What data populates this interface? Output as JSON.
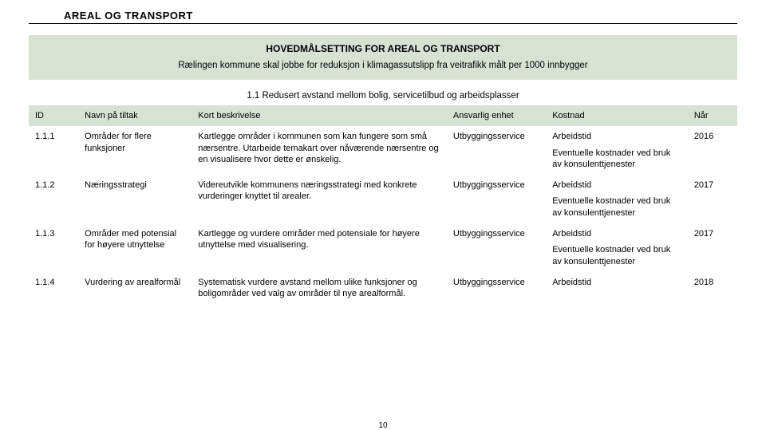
{
  "style": {
    "banner_bg": "#d6e3d3",
    "th_bg": "#d6e3d3"
  },
  "heading": "AREAL OG TRANSPORT",
  "banner": {
    "title": "HOVEDMÅLSETTING FOR AREAL OG TRANSPORT",
    "sub": "Rælingen kommune skal jobbe for reduksjon i klimagassutslipp fra veitrafikk målt per 1000 innbygger"
  },
  "section_title": "1.1 Redusert avstand mellom bolig, servicetilbud og arbeidsplasser",
  "columns": {
    "id": "ID",
    "name": "Navn på tiltak",
    "desc": "Kort beskrivelse",
    "resp": "Ansvarlig enhet",
    "cost": "Kostnad",
    "when": "Når"
  },
  "rows": [
    {
      "id": "1.1.1",
      "name": "Områder for flere funksjoner",
      "desc": "Kartlegge områder i kommunen som kan fungere som små nærsentre. Utarbeide temakart over nåværende nærsentre og en visualisere hvor dette er ønskelig.",
      "resp": "Utbyggingsservice",
      "cost": "Arbeidstid",
      "cost_extra": "Eventuelle kostnader ved bruk av konsulenttjenester",
      "when": "2016"
    },
    {
      "id": "1.1.2",
      "name": "Næringsstrategi",
      "desc": "Videreutvikle kommunens næringsstrategi med konkrete vurderinger knyttet til arealer.",
      "resp": "Utbyggingsservice",
      "cost": "Arbeidstid",
      "cost_extra": "Eventuelle kostnader ved bruk av konsulenttjenester",
      "when": "2017"
    },
    {
      "id": "1.1.3",
      "name": "Områder med potensial for høyere utnyttelse",
      "desc": "Kartlegge og vurdere områder med potensiale for høyere utnyttelse med visualisering.",
      "resp": "Utbyggingsservice",
      "cost": "Arbeidstid",
      "cost_extra": "Eventuelle kostnader ved bruk av konsulenttjenester",
      "when": "2017"
    },
    {
      "id": "1.1.4",
      "name": "Vurdering av arealformål",
      "desc": "Systematisk vurdere avstand  mellom ulike funksjoner og boligområder ved valg av områder til nye arealformål.",
      "resp": "Utbyggingsservice",
      "cost": "Arbeidstid",
      "cost_extra": "",
      "when": "2018"
    }
  ],
  "page_number": "10"
}
